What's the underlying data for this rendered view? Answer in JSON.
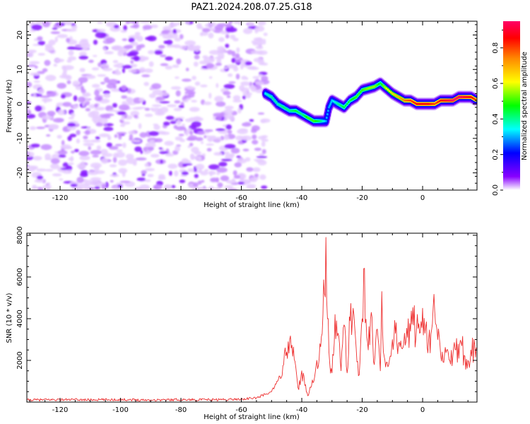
{
  "figure_title": "PAZ1.2024.208.07.25.G18",
  "chart_data": [
    {
      "type": "heatmap",
      "title": "",
      "xlabel": "Height of straight line (km)",
      "ylabel": "Frequency (Hz)",
      "xlim": [
        -131,
        18
      ],
      "ylim": [
        -25,
        24
      ],
      "xticks": [
        -120,
        -100,
        -80,
        -60,
        -40,
        -20,
        0
      ],
      "yticks": [
        -20,
        -10,
        0,
        10,
        20
      ],
      "colorbar": {
        "label": "Normalized spectral amplitude",
        "range": [
          0,
          0.95
        ],
        "ticks": [
          0.0,
          0.2,
          0.4,
          0.6,
          0.8
        ],
        "colormap": "gist_rainbow_r",
        "colors": [
          "#ffffff",
          "#8800ff",
          "#0000ff",
          "#00ffff",
          "#00ff00",
          "#ffff00",
          "#ff8800",
          "#ff0000",
          "#ff0066"
        ]
      },
      "noise_region": {
        "x_range": [
          -131,
          -52
        ],
        "f_range": [
          -25,
          24
        ],
        "typical_amplitude": 0.1
      },
      "signal_ridge": {
        "x": [
          -52,
          -50,
          -48,
          -46,
          -44,
          -42,
          -40,
          -38,
          -36,
          -34,
          -32,
          -31,
          -30,
          -28,
          -26,
          -24,
          -22,
          -20,
          -18,
          -16,
          -14,
          -12,
          -10,
          -8,
          -6,
          -4,
          -2,
          0,
          2,
          4,
          6,
          8,
          10,
          12,
          14,
          16,
          18
        ],
        "frequency": [
          3,
          2,
          0,
          -1,
          -2,
          -2,
          -3,
          -4,
          -5,
          -5,
          -5,
          -1,
          1,
          0,
          -1,
          1,
          2,
          4,
          4.5,
          5,
          6,
          4.5,
          3,
          2,
          1,
          1,
          0,
          0,
          0,
          0,
          1,
          1,
          1,
          2,
          2,
          2,
          1
        ],
        "amplitude": [
          0.35,
          0.4,
          0.38,
          0.42,
          0.4,
          0.45,
          0.4,
          0.5,
          0.5,
          0.42,
          0.3,
          0.3,
          0.32,
          0.4,
          0.45,
          0.45,
          0.5,
          0.5,
          0.55,
          0.55,
          0.45,
          0.6,
          0.65,
          0.7,
          0.75,
          0.8,
          0.85,
          0.85,
          0.85,
          0.8,
          0.85,
          0.9,
          0.95,
          0.95,
          0.9,
          0.85,
          0.8
        ]
      }
    },
    {
      "type": "line",
      "title": "",
      "xlabel": "Height of straight line (km)",
      "ylabel": "SNR (10 * v/v)",
      "xlim": [
        -131,
        18
      ],
      "ylim": [
        0,
        8100
      ],
      "xticks": [
        -120,
        -100,
        -80,
        -60,
        -40,
        -20,
        0
      ],
      "yticks": [
        2000,
        4000,
        6000,
        8000
      ],
      "series": [
        {
          "color": "#ee3030",
          "x": [
            -131,
            -120,
            -110,
            -100,
            -90,
            -80,
            -70,
            -60,
            -55,
            -50,
            -48,
            -46,
            -45,
            -44,
            -43,
            -42,
            -41,
            -40,
            -39,
            -38,
            -37,
            -36,
            -35,
            -34,
            -33,
            -32.5,
            -32,
            -31.5,
            -31,
            -30,
            -29,
            -28,
            -27,
            -26,
            -25,
            -24,
            -23,
            -22,
            -21,
            -20,
            -19.5,
            -19,
            -18,
            -17,
            -16,
            -15,
            -14,
            -13.5,
            -13,
            -12,
            -11,
            -10,
            -9,
            -8,
            -7,
            -6,
            -5,
            -4,
            -3,
            -2,
            -1,
            0,
            1,
            2,
            3,
            4,
            5,
            6,
            7,
            8,
            9,
            10,
            11,
            12,
            13,
            14,
            15,
            16,
            18
          ],
          "y": [
            100,
            120,
            110,
            120,
            100,
            120,
            110,
            140,
            200,
            500,
            1000,
            1800,
            2400,
            3000,
            2200,
            1700,
            600,
            1500,
            800,
            300,
            700,
            1000,
            2000,
            2800,
            4200,
            5200,
            7900,
            4000,
            2400,
            1400,
            4200,
            3300,
            1500,
            3700,
            1400,
            3900,
            4500,
            2600,
            1300,
            4000,
            6400,
            3800,
            2500,
            4300,
            1800,
            3500,
            1500,
            5300,
            2400,
            1900,
            2000,
            3000,
            3300,
            2800,
            2600,
            3300,
            3100,
            3400,
            3700,
            3600,
            3300,
            4500,
            3600,
            3000,
            3500,
            4400,
            3000,
            2200,
            1900,
            2500,
            2000,
            2200,
            2500,
            2100,
            2700,
            2200,
            2000,
            2500,
            2600
          ]
        }
      ]
    }
  ]
}
